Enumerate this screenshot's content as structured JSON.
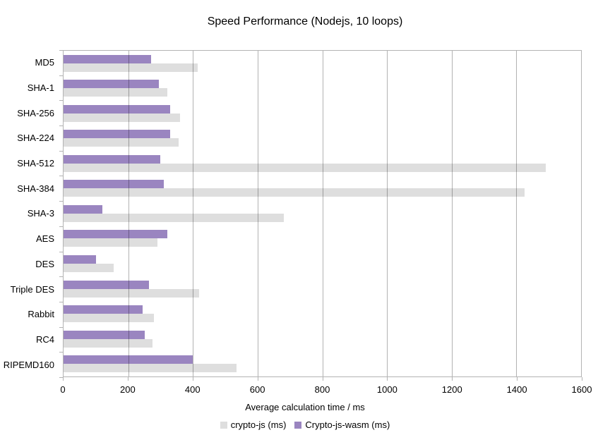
{
  "chart_data": {
    "type": "bar",
    "orientation": "horizontal",
    "title": "Speed Performance (Nodejs, 10 loops)",
    "xlabel": "Average calculation time / ms",
    "xlim": [
      0,
      1600
    ],
    "xticks": [
      0,
      200,
      400,
      600,
      800,
      1000,
      1200,
      1400,
      1600
    ],
    "grid": true,
    "grid_color": "#b3b3b3",
    "legend_position": "bottom",
    "categories": [
      "MD5",
      "SHA-1",
      "SHA-256",
      "SHA-224",
      "SHA-512",
      "SHA-384",
      "SHA-3",
      "AES",
      "DES",
      "Triple DES",
      "Rabbit",
      "RC4",
      "RIPEMD160"
    ],
    "series": [
      {
        "name": "crypto-js (ms)",
        "color": "#dedede",
        "values": [
          415,
          320,
          360,
          355,
          1490,
          1425,
          680,
          290,
          155,
          420,
          280,
          275,
          535
        ]
      },
      {
        "name": "Crypto-js-wasm (ms)",
        "color": "#9a85c0",
        "values": [
          270,
          295,
          330,
          330,
          300,
          310,
          120,
          320,
          100,
          265,
          245,
          250,
          400
        ]
      }
    ]
  }
}
